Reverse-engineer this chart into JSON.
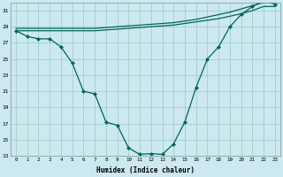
{
  "xlabel": "Humidex (Indice chaleur)",
  "bg_color": "#cce8f0",
  "grid_color": "#99ccbb",
  "line_color": "#006655",
  "xmin": -0.5,
  "xmax": 23.5,
  "ymin": 13,
  "ymax": 32,
  "yticks": [
    13,
    15,
    17,
    19,
    21,
    23,
    25,
    27,
    29,
    31
  ],
  "xticks": [
    0,
    1,
    2,
    3,
    4,
    5,
    6,
    7,
    8,
    9,
    10,
    11,
    12,
    13,
    14,
    15,
    16,
    17,
    18,
    19,
    20,
    21,
    22,
    23
  ],
  "line_main": [
    28.5,
    27.8,
    27.5,
    27.5,
    26.5,
    24.5,
    21.0,
    20.7,
    17.2,
    16.8,
    14.0,
    13.2,
    13.3,
    13.2,
    14.5,
    17.2,
    21.5,
    25.0,
    26.5,
    29.0,
    30.5,
    31.5,
    32.2,
    31.8
  ],
  "line_top1": [
    28.5,
    28.5,
    28.5,
    28.5,
    28.5,
    28.5,
    28.5,
    28.5,
    28.6,
    28.7,
    28.8,
    28.9,
    29.0,
    29.1,
    29.2,
    29.4,
    29.6,
    29.8,
    30.0,
    30.3,
    30.6,
    31.0,
    31.5,
    31.5
  ],
  "line_top2": [
    28.8,
    28.8,
    28.8,
    28.8,
    28.8,
    28.8,
    28.8,
    28.8,
    28.9,
    29.0,
    29.1,
    29.2,
    29.3,
    29.4,
    29.5,
    29.7,
    29.9,
    30.2,
    30.5,
    30.8,
    31.2,
    31.6,
    32.0,
    32.0
  ]
}
